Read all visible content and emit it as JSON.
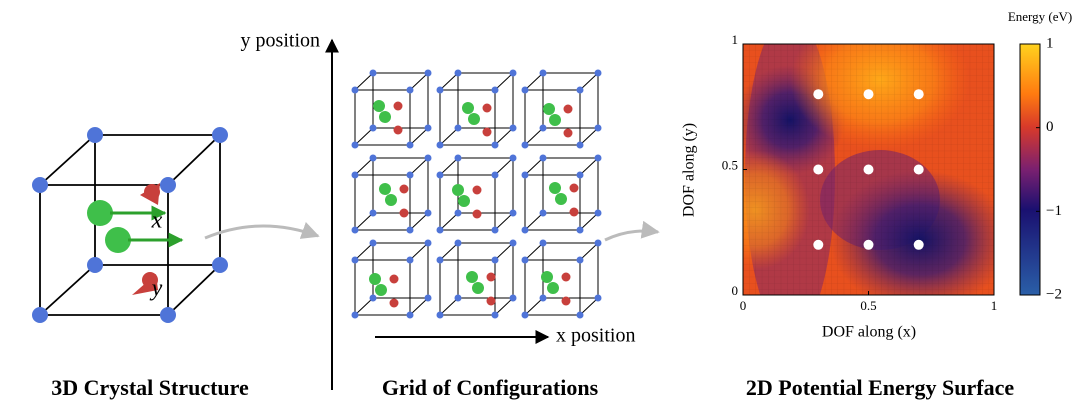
{
  "crystal": {
    "x_label": "x",
    "y_label": "y",
    "caption": "3D Crystal Structure"
  },
  "grid": {
    "y_axis_label": "y position",
    "x_axis_label": "x position",
    "caption": "Grid of Configurations"
  },
  "surface": {
    "caption": "2D Potential Energy Surface",
    "x_label": "DOF along (x)",
    "y_label": "DOF along (y)",
    "xlim": [
      0,
      1
    ],
    "ylim": [
      0,
      1
    ],
    "xticks": [
      0,
      0.5,
      1
    ],
    "yticks": [
      0,
      0.5,
      1
    ],
    "points": {
      "x": [
        0.3,
        0.5,
        0.7,
        0.3,
        0.5,
        0.7,
        0.3,
        0.5,
        0.7
      ],
      "y": [
        0.8,
        0.8,
        0.8,
        0.5,
        0.5,
        0.5,
        0.2,
        0.2,
        0.2
      ]
    },
    "colorbar": {
      "label": "Energy (eV)",
      "lim": [
        -2,
        1
      ],
      "ticks": [
        1,
        0,
        {
          "value": -1,
          "label": "−1"
        },
        {
          "value": -2,
          "label": "−2"
        }
      ]
    }
  }
}
